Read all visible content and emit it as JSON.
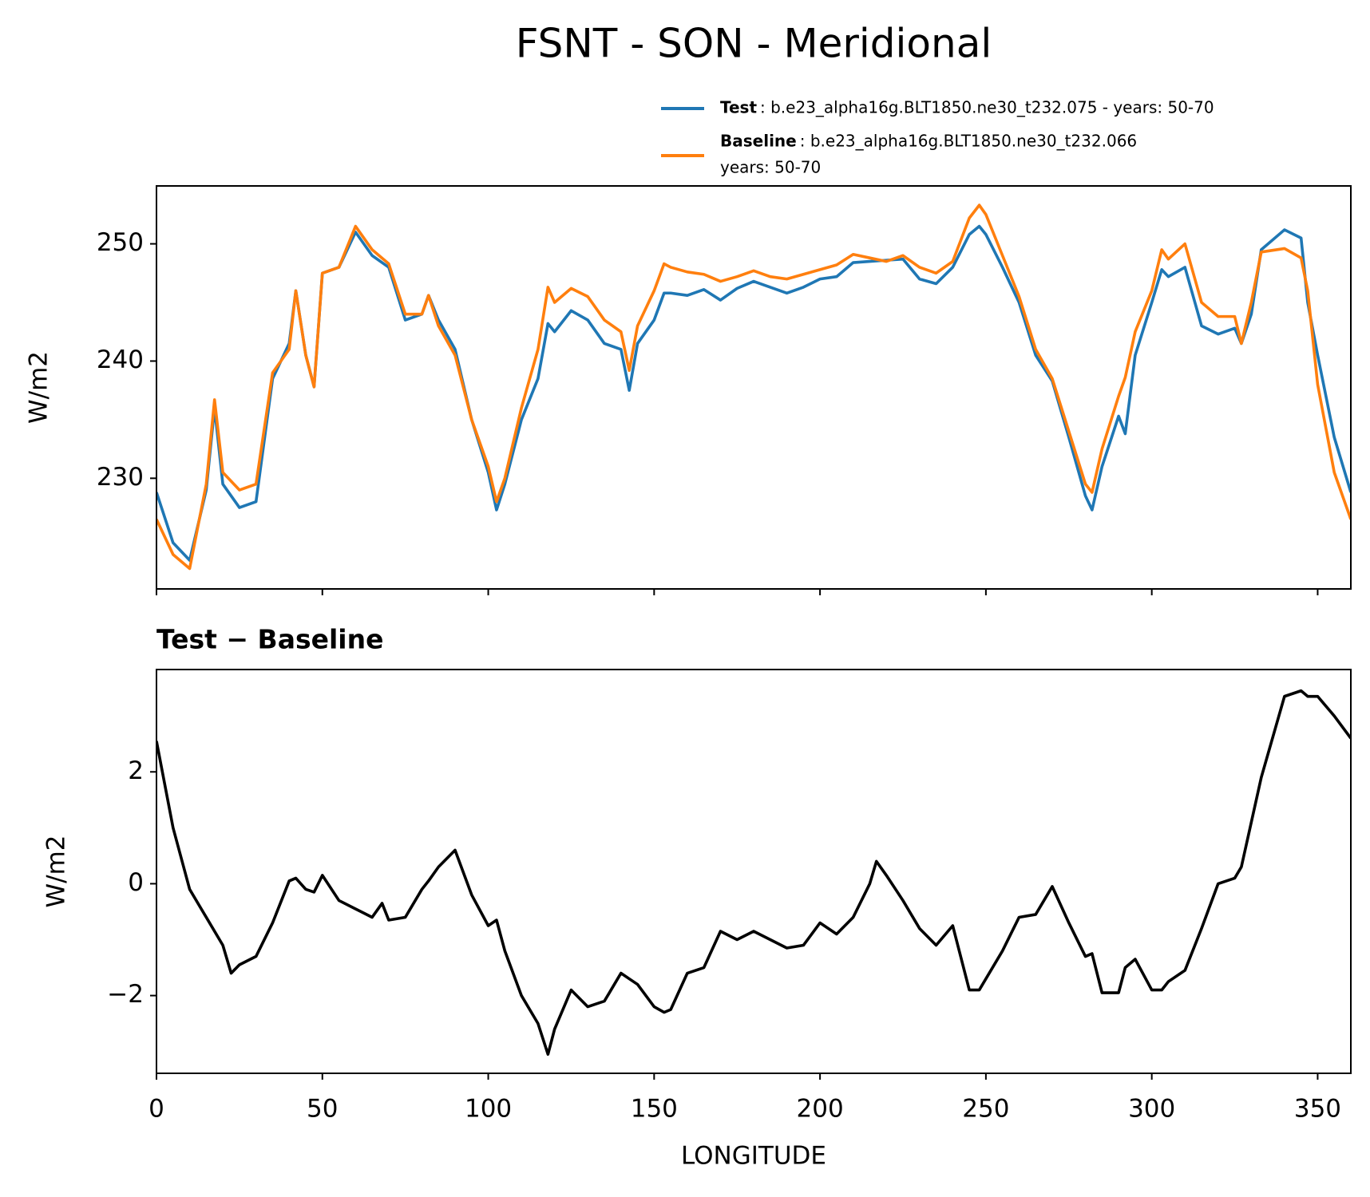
{
  "chart_data": [
    {
      "type": "line",
      "title": "FSNT - SON - Meridional",
      "ylabel": "W/m2",
      "xlim": [
        0,
        360
      ],
      "xticks": [
        0,
        50,
        100,
        150,
        200,
        250,
        300,
        350
      ],
      "show_xtick_labels": false,
      "ylim": [
        220.56,
        254.94
      ],
      "yticks": [
        230,
        240,
        250
      ],
      "x": [
        0,
        5,
        10,
        15,
        17.5,
        20,
        25,
        30,
        35,
        40,
        42,
        45,
        47.5,
        50,
        55,
        60,
        65,
        70,
        75,
        80,
        82,
        85,
        90,
        95,
        100,
        102.5,
        105,
        110,
        115,
        118,
        120,
        125,
        130,
        135,
        140,
        142.5,
        145,
        150,
        153,
        155,
        160,
        165,
        170,
        175,
        180,
        185,
        190,
        195,
        200,
        205,
        210,
        215,
        220,
        225,
        230,
        235,
        240,
        245,
        248,
        250,
        255,
        260,
        265,
        270,
        275,
        280,
        282,
        285,
        290,
        292,
        295,
        300,
        303,
        305,
        310,
        315,
        320,
        325,
        327,
        330,
        333,
        340,
        345,
        347,
        350,
        355,
        360
      ],
      "series": [
        {
          "name": "Test",
          "description": [
            ": b.e23_alpha16g.BLT1850.ne30_t232.075 - years: 50-70"
          ],
          "color": "#1f77b4",
          "values": [
            228.8,
            224.5,
            223,
            229,
            236,
            229.5,
            227.5,
            228,
            238.5,
            241.5,
            246,
            240.5,
            237.8,
            247.5,
            248,
            251,
            249,
            248,
            243.5,
            244,
            245.6,
            243.5,
            241,
            235,
            230.5,
            227.3,
            229.5,
            235,
            238.5,
            243.2,
            242.5,
            244.3,
            243.5,
            241.5,
            241,
            237.5,
            241.5,
            243.5,
            245.8,
            245.8,
            245.6,
            246.1,
            245.2,
            246.2,
            246.8,
            246.3,
            245.8,
            246.3,
            247,
            247.2,
            248.4,
            248.5,
            248.6,
            248.7,
            247,
            246.6,
            248,
            250.8,
            251.5,
            250.8,
            248,
            245,
            240.5,
            238.3,
            233.5,
            228.5,
            227.3,
            231,
            235.3,
            233.8,
            240.5,
            245,
            247.8,
            247.2,
            248,
            243,
            242.3,
            242.8,
            241.5,
            244,
            249.5,
            251.2,
            250.5,
            245,
            240.5,
            233.5,
            228.8
          ]
        },
        {
          "name": "Baseline",
          "description": [
            ": b.e23_alpha16g.BLT1850.ne30_t232.066",
            "years: 50-70"
          ],
          "color": "#ff7f0e",
          "values": [
            226.5,
            223.5,
            222.3,
            229.5,
            236.7,
            230.5,
            229,
            229.5,
            239,
            241,
            246,
            240.5,
            237.8,
            247.5,
            248,
            251.5,
            249.5,
            248.3,
            244,
            244,
            245.6,
            243,
            240.5,
            235,
            231,
            228,
            230,
            236,
            241,
            246.3,
            245,
            246.2,
            245.5,
            243.5,
            242.5,
            239.2,
            243,
            246,
            248.3,
            248,
            247.6,
            247.4,
            246.8,
            247.2,
            247.7,
            247.2,
            247,
            247.4,
            247.8,
            248.2,
            249.1,
            248.8,
            248.5,
            249,
            248,
            247.5,
            248.5,
            252.2,
            253.3,
            252.5,
            249,
            245.5,
            241,
            238.5,
            234,
            229.5,
            228.8,
            232.5,
            237,
            238.6,
            242.5,
            246,
            249.5,
            248.7,
            250,
            245,
            243.8,
            243.8,
            241.5,
            245,
            249.3,
            249.6,
            248.8,
            246,
            238,
            230.5,
            226.5
          ]
        }
      ]
    },
    {
      "type": "line",
      "subtitle": "Test − Baseline",
      "ylabel": "W/m2",
      "xlabel": "LONGITUDE",
      "xlim": [
        0,
        360
      ],
      "xticks": [
        0,
        50,
        100,
        150,
        200,
        250,
        300,
        350
      ],
      "show_xtick_labels": true,
      "ylim": [
        -3.39,
        3.83
      ],
      "yticks": [
        {
          "value": -2,
          "label": "−2"
        },
        0,
        2
      ],
      "x": [
        0,
        5,
        10,
        15,
        20,
        22.5,
        25,
        30,
        35,
        40,
        42,
        45,
        47.5,
        50,
        55,
        60,
        65,
        68,
        70,
        75,
        80,
        82,
        85,
        90,
        95,
        100,
        102.5,
        105,
        110,
        115,
        118,
        120,
        125,
        130,
        135,
        140,
        142.5,
        145,
        150,
        153,
        155,
        160,
        165,
        170,
        175,
        180,
        185,
        190,
        195,
        200,
        205,
        210,
        215,
        217,
        220,
        225,
        230,
        235,
        240,
        245,
        248,
        250,
        255,
        260,
        265,
        270,
        275,
        280,
        282,
        285,
        290,
        292,
        295,
        300,
        303,
        305,
        310,
        315,
        320,
        325,
        327,
        330,
        333,
        340,
        345,
        347,
        350,
        355,
        360
      ],
      "series": [
        {
          "color": "#000000",
          "values": [
            2.55,
            1.0,
            -0.1,
            -0.6,
            -1.1,
            -1.6,
            -1.45,
            -1.3,
            -0.7,
            0.05,
            0.1,
            -0.1,
            -0.15,
            0.15,
            -0.3,
            -0.45,
            -0.6,
            -0.35,
            -0.65,
            -0.6,
            -0.1,
            0.05,
            0.3,
            0.6,
            -0.2,
            -0.75,
            -0.65,
            -1.2,
            -2.0,
            -2.5,
            -3.05,
            -2.6,
            -1.9,
            -2.2,
            -2.1,
            -1.6,
            -1.7,
            -1.8,
            -2.2,
            -2.3,
            -2.25,
            -1.6,
            -1.5,
            -0.85,
            -1.0,
            -0.85,
            -1.0,
            -1.15,
            -1.1,
            -0.7,
            -0.9,
            -0.6,
            0.0,
            0.4,
            0.15,
            -0.3,
            -0.8,
            -1.1,
            -0.75,
            -1.9,
            -1.9,
            -1.7,
            -1.2,
            -0.6,
            -0.55,
            -0.05,
            -0.7,
            -1.3,
            -1.25,
            -1.95,
            -1.95,
            -1.5,
            -1.35,
            -1.9,
            -1.9,
            -1.75,
            -1.55,
            -0.8,
            0.0,
            0.1,
            0.3,
            1.1,
            1.9,
            3.35,
            3.45,
            3.35,
            3.35,
            3.0,
            2.6
          ]
        }
      ]
    }
  ]
}
